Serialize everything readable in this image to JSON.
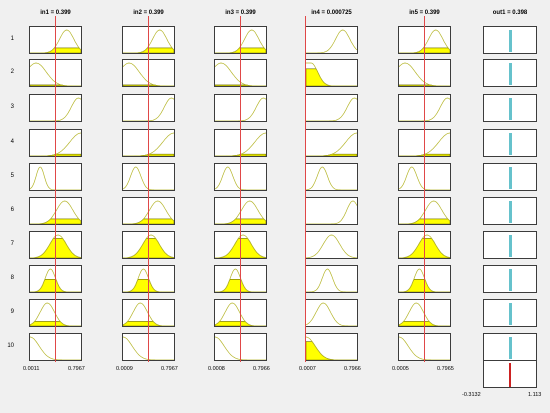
{
  "viewer": {
    "inputs": [
      {
        "header": "in1 = 0.399",
        "min_label": "0.0011",
        "max_label": "0.7967",
        "value": 0.399,
        "min": 0.0011,
        "max": 0.7967
      },
      {
        "header": "in2 = 0.399",
        "min_label": "0.0009",
        "max_label": "0.7967",
        "value": 0.399,
        "min": 0.0009,
        "max": 0.7967
      },
      {
        "header": "in3 = 0.399",
        "min_label": "0.0008",
        "max_label": "0.7966",
        "value": 0.399,
        "min": 0.0008,
        "max": 0.7966
      },
      {
        "header": "in4 = 0.000725",
        "min_label": "0.0007",
        "max_label": "0.7966",
        "value": 0.000725,
        "min": 0.0007,
        "max": 0.7966
      },
      {
        "header": "in5 = 0.399",
        "min_label": "0.0005",
        "max_label": "0.7965",
        "value": 0.399,
        "min": 0.0005,
        "max": 0.7965
      }
    ],
    "output": {
      "header": "out1 = 0.398",
      "min_label": "-0.3132",
      "max_label": "1.113",
      "value": 0.398,
      "min": -0.3132,
      "max": 1.113,
      "rule_bar_color": "#66c2cc",
      "aggregate_line_color": "#cc2222"
    },
    "rule_numbers": [
      "1",
      "2",
      "3",
      "4",
      "5",
      "6",
      "7",
      "8",
      "9",
      "10"
    ],
    "colors": {
      "curve": "#b5b52a",
      "fill": "#ffff00",
      "fill_stroke": "#6b6b00",
      "cursor": "#e04848"
    }
  }
}
